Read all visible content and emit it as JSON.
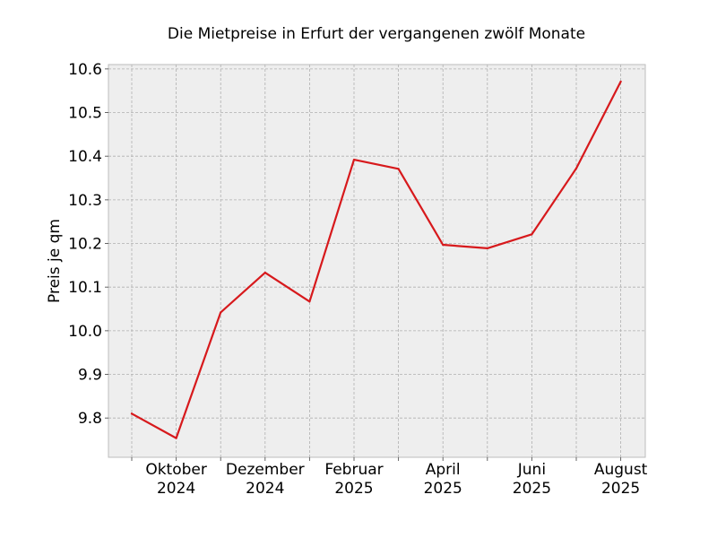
{
  "chart_data": {
    "type": "line",
    "title": "Die Mietpreise in Erfurt der vergangenen zwölf Monate",
    "xlabel": "",
    "ylabel": "Preis je qm",
    "ylim": [
      9.71,
      10.61
    ],
    "yticks": [
      "9.8",
      "9.9",
      "10.0",
      "10.1",
      "10.2",
      "10.3",
      "10.4",
      "10.5",
      "10.6"
    ],
    "xticks": [
      {
        "month": "Oktober",
        "year": "2024"
      },
      {
        "month": "Dezember",
        "year": "2024"
      },
      {
        "month": "Februar",
        "year": "2025"
      },
      {
        "month": "April",
        "year": "2025"
      },
      {
        "month": "Juni",
        "year": "2025"
      },
      {
        "month": "August",
        "year": "2025"
      }
    ],
    "grid": true,
    "series": [
      {
        "color": "#d7191c",
        "x": [
          "2024-09",
          "2024-10",
          "2024-11",
          "2024-12",
          "2025-01",
          "2025-02",
          "2025-03",
          "2025-04",
          "2025-05",
          "2025-06",
          "2025-07",
          "2025-08"
        ],
        "values": [
          9.81,
          9.754,
          10.042,
          10.133,
          10.067,
          10.392,
          10.371,
          10.197,
          10.189,
          10.221,
          10.372,
          10.571
        ]
      }
    ],
    "colors": {
      "background": "#eeeeee",
      "frame": "#bcbcbc",
      "line": "#d7191c"
    }
  }
}
